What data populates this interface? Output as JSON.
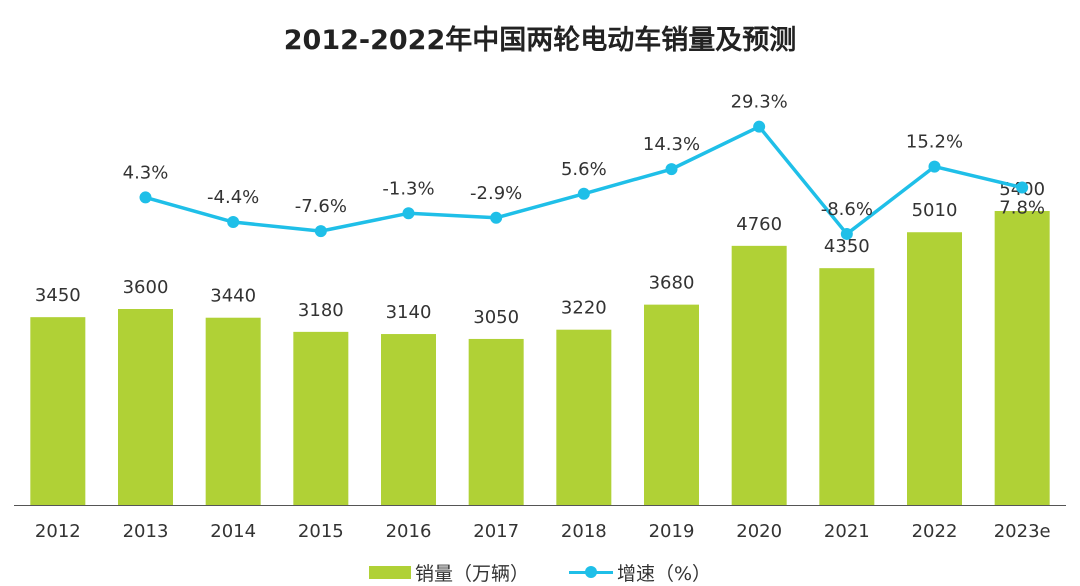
{
  "colors": {
    "bar": "#b0d136",
    "line": "#1fbfe8",
    "axis": "#555555",
    "text": "#333333"
  },
  "chart_data": {
    "type": "bar",
    "title": "2012-2022年中国两轮电动车销量及预测",
    "categories": [
      "2012",
      "2013",
      "2014",
      "2015",
      "2016",
      "2017",
      "2018",
      "2019",
      "2020",
      "2021",
      "2022",
      "2023e"
    ],
    "series": [
      {
        "name": "销量（万辆）",
        "type": "bar",
        "axis": "left",
        "values": [
          3450,
          3600,
          3440,
          3180,
          3140,
          3050,
          3220,
          3680,
          4760,
          4350,
          5010,
          5400
        ]
      },
      {
        "name": "增速（%）",
        "type": "line",
        "axis": "right",
        "values": [
          null,
          4.3,
          -4.4,
          -7.6,
          -1.3,
          -2.9,
          5.6,
          14.3,
          29.3,
          -8.6,
          15.2,
          7.8
        ]
      }
    ],
    "bar_labels": [
      "3450",
      "3600",
      "3440",
      "3180",
      "3140",
      "3050",
      "3220",
      "3680",
      "4760",
      "4350",
      "5010",
      "5400"
    ],
    "line_labels": [
      null,
      "4.3%",
      "-4.4%",
      "-7.6%",
      "-1.3%",
      "-2.9%",
      "5.6%",
      "14.3%",
      "29.3%",
      "-8.6%",
      "15.2%",
      "7.8%"
    ],
    "ylim_left": [
      0,
      5400
    ],
    "ylim_right": [
      -30,
      30
    ],
    "legend_position": "bottom",
    "grid": false
  }
}
